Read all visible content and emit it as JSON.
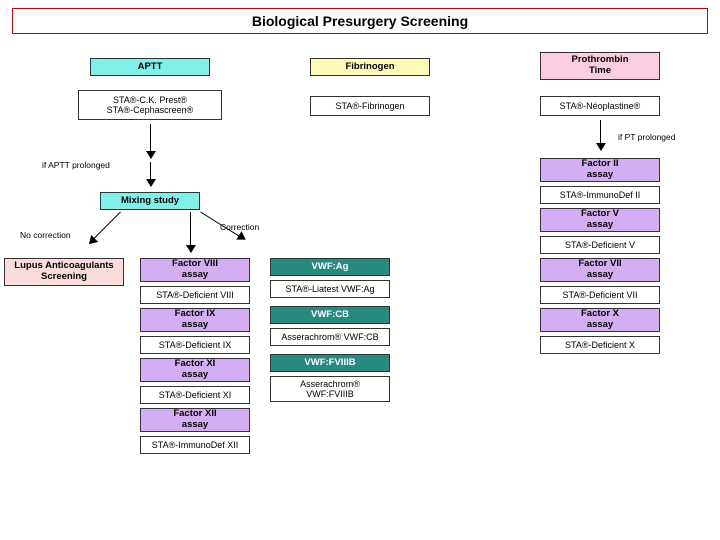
{
  "title": "Biological Presurgery Screening",
  "colors": {
    "cyan": "#80f0e8",
    "yellow": "#fff9b8",
    "pink": "#fccde0",
    "pinkLight": "#fadcdc",
    "purple": "#d4aef2",
    "teal": "#2a897f",
    "tealText": "#ffffff",
    "titleBorder": "#cc0000"
  },
  "aptt": {
    "header": "APTT",
    "products": "STA®-C.K. Prest®\nSTA®-Cephascreen®",
    "condLabel": "if APTT prolonged",
    "mixing": "Mixing study",
    "noCorr": "No correction",
    "corr": "Correction",
    "lupus": "Lupus Anticoagulants\nScreening",
    "factors": [
      {
        "assay": "Factor VIII\nassay",
        "product": "STA®-Deficient VIII"
      },
      {
        "assay": "Factor IX\nassay",
        "product": "STA®-Deficient IX"
      },
      {
        "assay": "Factor XI\nassay",
        "product": "STA®-Deficient XI"
      },
      {
        "assay": "Factor XII\nassay",
        "product": "STA®-ImmunoDef XII"
      }
    ],
    "vwf": [
      {
        "head": "VWF:Ag",
        "product": "STA®-Liatest VWF:Ag"
      },
      {
        "head": "VWF:CB",
        "product": "Asserachrom® VWF:CB"
      },
      {
        "head": "VWF:FVIIIB",
        "product": "Asserachrom®\nVWF:FVIIIB"
      }
    ]
  },
  "fibrinogen": {
    "header": "Fibrinogen",
    "product": "STA®-Fibrinogen"
  },
  "pt": {
    "header": "Prothrombin\nTime",
    "product": "STA®-Néoplastine®",
    "condLabel": "if PT prolonged",
    "factors": [
      {
        "assay": "Factor II\nassay",
        "product": "STA®-ImmunoDef II"
      },
      {
        "assay": "Factor V\nassay",
        "product": "STA®-Deficient V"
      },
      {
        "assay": "Factor VII\nassay",
        "product": "STA®-Deficient VII"
      },
      {
        "assay": "Factor X\nassay",
        "product": "STA®-Deficient X"
      }
    ]
  },
  "layout": {
    "boxW": 120,
    "narrowW": 110,
    "apttX": 90,
    "mixX": 100,
    "lupusX": 4,
    "factColX": 140,
    "vwfColX": 270,
    "fibX": 310,
    "ptX": 540,
    "row": {
      "header": 58,
      "prod1": 96,
      "mixing": 192,
      "branches": 258
    },
    "stepAssay": 24,
    "gapPair": 46
  }
}
